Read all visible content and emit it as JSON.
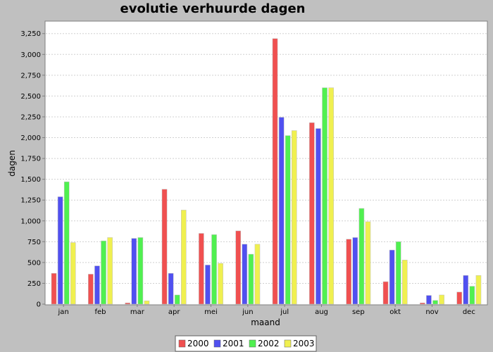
{
  "chart_data": {
    "type": "bar",
    "title": "evolutie verhuurde dagen",
    "xlabel": "maand",
    "ylabel": "dagen",
    "ylim": [
      0,
      3400
    ],
    "yticks": [
      0,
      250,
      500,
      750,
      1000,
      1250,
      1500,
      1750,
      2000,
      2250,
      2500,
      2750,
      3000,
      3250
    ],
    "ytick_labels": [
      "0",
      "250",
      "500",
      "750",
      "1,000",
      "1,250",
      "1,500",
      "1,750",
      "2,000",
      "2,250",
      "2,500",
      "2,750",
      "3,000",
      "3,250"
    ],
    "grid": true,
    "legend_position": "bottom",
    "categories": [
      "jan",
      "feb",
      "mar",
      "apr",
      "mei",
      "jun",
      "jul",
      "aug",
      "sep",
      "okt",
      "nov",
      "dec"
    ],
    "series": [
      {
        "name": "2000",
        "color": "#f05050",
        "values": [
          370,
          360,
          15,
          1380,
          850,
          880,
          3190,
          2180,
          780,
          270,
          15,
          145
        ]
      },
      {
        "name": "2001",
        "color": "#5050f0",
        "values": [
          1290,
          460,
          790,
          370,
          470,
          720,
          2245,
          2110,
          800,
          650,
          105,
          345
        ]
      },
      {
        "name": "2002",
        "color": "#50f050",
        "values": [
          1470,
          760,
          800,
          110,
          835,
          600,
          2025,
          2600,
          1150,
          750,
          45,
          215
        ]
      },
      {
        "name": "2003",
        "color": "#f0f050",
        "values": [
          740,
          800,
          40,
          1130,
          490,
          720,
          2085,
          2600,
          990,
          530,
          110,
          345
        ]
      }
    ]
  }
}
